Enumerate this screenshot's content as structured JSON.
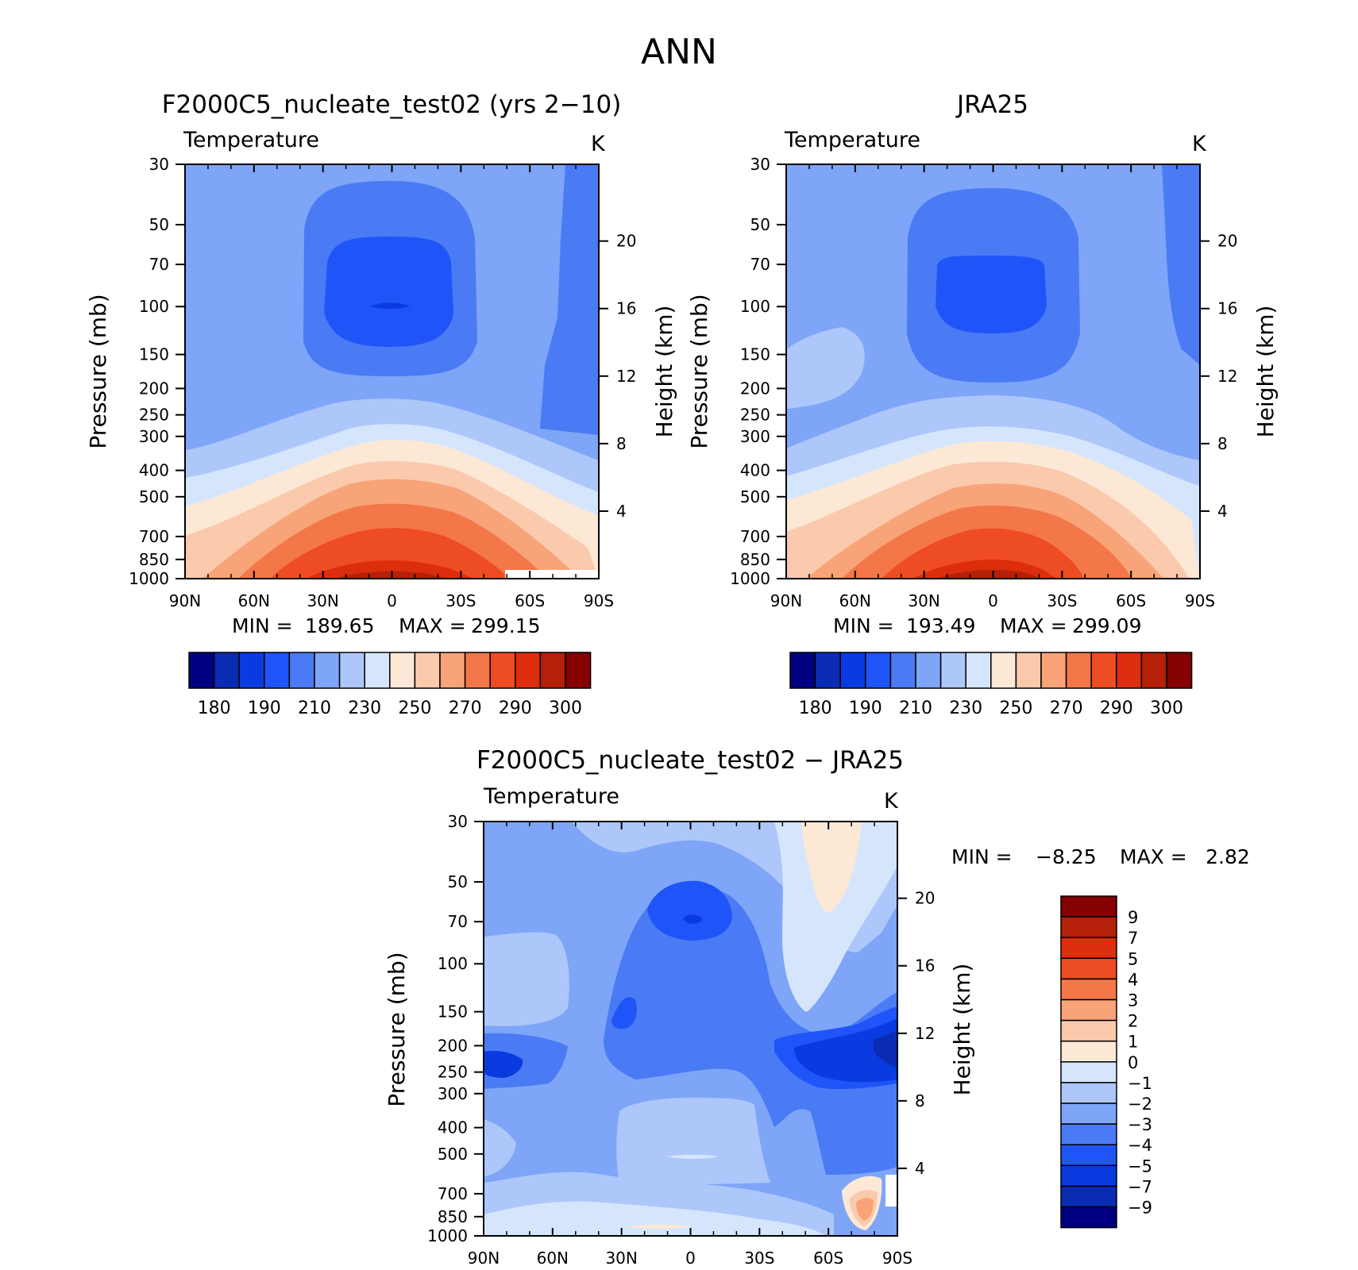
{
  "page": {
    "title": "ANN"
  },
  "colors": {
    "main_palette": [
      "#000080",
      "#0a2cb4",
      "#0a3be0",
      "#1f55f8",
      "#4a7bf5",
      "#7ea5f7",
      "#adc7fa",
      "#d5e6fc",
      "#fde8d6",
      "#fbc9ac",
      "#f8a378",
      "#f37748",
      "#ee4c22",
      "#dc2e0c",
      "#b42008",
      "#850000"
    ],
    "diff_palette": [
      "#850000",
      "#b42008",
      "#dc2e0c",
      "#ee4c22",
      "#f37748",
      "#f8a378",
      "#fbc9ac",
      "#fde8d6",
      "#d5e6fc",
      "#adc7fa",
      "#7ea5f7",
      "#4a7bf5",
      "#1f55f8",
      "#0a3be0",
      "#0a2cb4",
      "#000080"
    ]
  },
  "chart_data": [
    {
      "type": "heatmap",
      "panel_title": "F2000C5_nucleate_test02 (yrs 2−10)",
      "variable": "Temperature",
      "units": "K",
      "xlabel": "",
      "ylabel": "Pressure (mb)",
      "y2label": "Height (km)",
      "x_ticks": [
        "90N",
        "60N",
        "30N",
        "0",
        "30S",
        "60S",
        "90S"
      ],
      "y_ticks": [
        30,
        50,
        70,
        100,
        150,
        200,
        250,
        300,
        400,
        500,
        700,
        850,
        1000
      ],
      "y2_ticks": [
        4,
        8,
        12,
        16,
        20
      ],
      "min": 189.65,
      "max": 299.15,
      "min_label": "MIN =",
      "max_label": "MAX =",
      "min_text": "189.65",
      "max_text": "299.15",
      "colorbar_labels": [
        "180",
        "190",
        "210",
        "230",
        "250",
        "270",
        "290",
        "300"
      ],
      "profile_levels_mb": [
        30,
        50,
        70,
        100,
        150,
        200,
        250,
        300,
        400,
        500,
        700,
        850,
        1000
      ],
      "profile_equator_K": [
        212,
        208,
        199,
        192,
        200,
        213,
        222,
        231,
        250,
        265,
        282,
        292,
        299
      ],
      "profile_pole_K": [
        217,
        215,
        214,
        214,
        216,
        219,
        222,
        224,
        228,
        235,
        250,
        258,
        262
      ]
    },
    {
      "type": "heatmap",
      "panel_title": "JRA25",
      "variable": "Temperature",
      "units": "K",
      "xlabel": "",
      "ylabel": "Pressure (mb)",
      "y2label": "Height (km)",
      "x_ticks": [
        "90N",
        "60N",
        "30N",
        "0",
        "30S",
        "60S",
        "90S"
      ],
      "y_ticks": [
        30,
        50,
        70,
        100,
        150,
        200,
        250,
        300,
        400,
        500,
        700,
        850,
        1000
      ],
      "y2_ticks": [
        4,
        8,
        12,
        16,
        20
      ],
      "min": 193.49,
      "max": 299.09,
      "min_label": "MIN =",
      "max_label": "MAX =",
      "min_text": "193.49",
      "max_text": "299.09",
      "colorbar_labels": [
        "180",
        "190",
        "210",
        "230",
        "250",
        "270",
        "290",
        "300"
      ],
      "profile_levels_mb": [
        30,
        50,
        70,
        100,
        150,
        200,
        250,
        300,
        400,
        500,
        700,
        850,
        1000
      ],
      "profile_equator_K": [
        214,
        209,
        202,
        197,
        203,
        213,
        222,
        231,
        249,
        264,
        281,
        291,
        299
      ],
      "profile_pole_K": [
        218,
        217,
        216,
        216,
        219,
        223,
        225,
        226,
        229,
        236,
        250,
        258,
        262
      ]
    },
    {
      "type": "heatmap",
      "panel_title": "F2000C5_nucleate_test02 − JRA25",
      "variable": "Temperature",
      "units": "K",
      "xlabel": "",
      "ylabel": "Pressure (mb)",
      "y2label": "Height (km)",
      "x_ticks": [
        "90N",
        "60N",
        "30N",
        "0",
        "30S",
        "60S",
        "90S"
      ],
      "y_ticks": [
        30,
        50,
        70,
        100,
        150,
        200,
        250,
        300,
        400,
        500,
        700,
        850,
        1000
      ],
      "y2_ticks": [
        4,
        8,
        12,
        16,
        20
      ],
      "min": -8.25,
      "max": 2.82,
      "min_label": "MIN =",
      "max_label": "MAX =",
      "min_text": "−8.25",
      "max_text": "2.82",
      "colorbar_labels": [
        "9",
        "7",
        "5",
        "4",
        "3",
        "2",
        "1",
        "0",
        "−1",
        "−2",
        "−3",
        "−4",
        "−5",
        "−7",
        "−9"
      ]
    }
  ]
}
